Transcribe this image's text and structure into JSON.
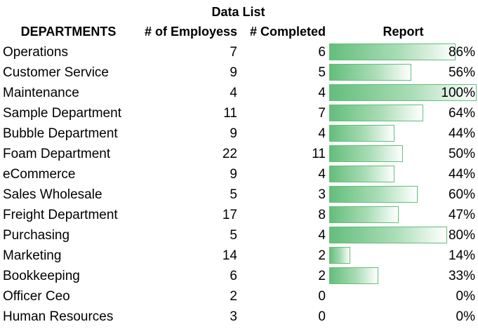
{
  "title": "Data List",
  "headers": {
    "department": "DEPARTMENTS",
    "employees": "# of Employess",
    "completed": "# Completed",
    "report": "Report"
  },
  "colors": {
    "bar_solid": "#63be7b",
    "bar_border": "#63be7b"
  },
  "rows": [
    {
      "department": "Operations",
      "employees": "7",
      "completed": "6",
      "report": "86%",
      "fraction": 0.857
    },
    {
      "department": "Customer Service",
      "employees": "9",
      "completed": "5",
      "report": "56%",
      "fraction": 0.556
    },
    {
      "department": "Maintenance",
      "employees": "4",
      "completed": "4",
      "report": "100%",
      "fraction": 1.0
    },
    {
      "department": "Sample Department",
      "employees": "11",
      "completed": "7",
      "report": "64%",
      "fraction": 0.636
    },
    {
      "department": "Bubble Department",
      "employees": "9",
      "completed": "4",
      "report": "44%",
      "fraction": 0.444
    },
    {
      "department": "Foam Department",
      "employees": "22",
      "completed": "11",
      "report": "50%",
      "fraction": 0.5
    },
    {
      "department": "eCommerce",
      "employees": "9",
      "completed": "4",
      "report": "44%",
      "fraction": 0.444
    },
    {
      "department": "Sales Wholesale",
      "employees": "5",
      "completed": "3",
      "report": "60%",
      "fraction": 0.6
    },
    {
      "department": "Freight Department",
      "employees": "17",
      "completed": "8",
      "report": "47%",
      "fraction": 0.471
    },
    {
      "department": "Purchasing",
      "employees": "5",
      "completed": "4",
      "report": "80%",
      "fraction": 0.8
    },
    {
      "department": "Marketing",
      "employees": "14",
      "completed": "2",
      "report": "14%",
      "fraction": 0.143
    },
    {
      "department": "Bookkeeping",
      "employees": "6",
      "completed": "2",
      "report": "33%",
      "fraction": 0.333
    },
    {
      "department": "Officer Ceo",
      "employees": "2",
      "completed": "0",
      "report": "0%",
      "fraction": 0
    },
    {
      "department": "Human Resources",
      "employees": "3",
      "completed": "0",
      "report": "0%",
      "fraction": 0
    }
  ]
}
